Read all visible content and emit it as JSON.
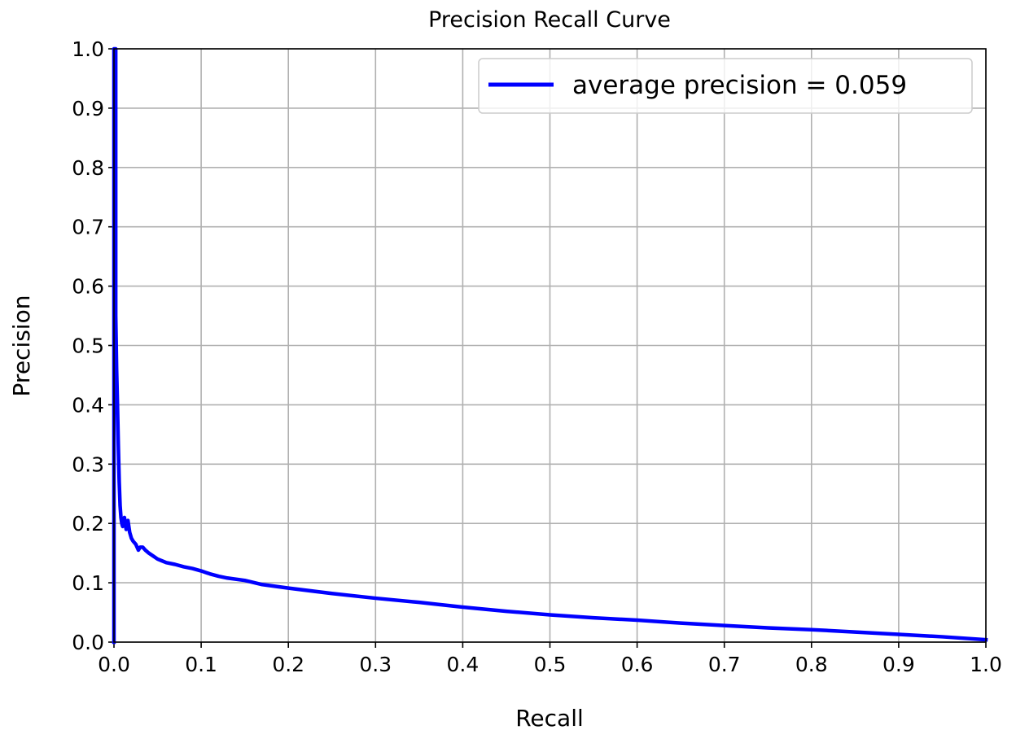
{
  "chart_data": {
    "type": "line",
    "title": "Precision Recall Curve",
    "xlabel": "Recall",
    "ylabel": "Precision",
    "xlim": [
      0.0,
      1.0
    ],
    "ylim": [
      0.0,
      1.0
    ],
    "xticks": [
      "0.0",
      "0.1",
      "0.2",
      "0.3",
      "0.4",
      "0.5",
      "0.6",
      "0.7",
      "0.8",
      "0.9",
      "1.0"
    ],
    "yticks": [
      "0.0",
      "0.1",
      "0.2",
      "0.3",
      "0.4",
      "0.5",
      "0.6",
      "0.7",
      "0.8",
      "0.9",
      "1.0"
    ],
    "grid": true,
    "legend_position": "top-right",
    "series": [
      {
        "name": "average precision = 0.059",
        "color": "#0000ff",
        "points": [
          [
            0.0,
            0.0
          ],
          [
            0.0,
            1.0
          ],
          [
            0.002,
            1.0
          ],
          [
            0.002,
            0.55
          ],
          [
            0.003,
            0.46
          ],
          [
            0.004,
            0.4
          ],
          [
            0.005,
            0.33
          ],
          [
            0.006,
            0.27
          ],
          [
            0.007,
            0.23
          ],
          [
            0.008,
            0.21
          ],
          [
            0.009,
            0.2
          ],
          [
            0.01,
            0.195
          ],
          [
            0.012,
            0.21
          ],
          [
            0.014,
            0.19
          ],
          [
            0.016,
            0.205
          ],
          [
            0.018,
            0.185
          ],
          [
            0.02,
            0.175
          ],
          [
            0.022,
            0.17
          ],
          [
            0.025,
            0.165
          ],
          [
            0.028,
            0.155
          ],
          [
            0.03,
            0.16
          ],
          [
            0.033,
            0.16
          ],
          [
            0.036,
            0.155
          ],
          [
            0.04,
            0.15
          ],
          [
            0.045,
            0.145
          ],
          [
            0.05,
            0.14
          ],
          [
            0.055,
            0.137
          ],
          [
            0.06,
            0.134
          ],
          [
            0.07,
            0.131
          ],
          [
            0.08,
            0.127
          ],
          [
            0.09,
            0.124
          ],
          [
            0.1,
            0.12
          ],
          [
            0.11,
            0.115
          ],
          [
            0.12,
            0.111
          ],
          [
            0.13,
            0.108
          ],
          [
            0.15,
            0.104
          ],
          [
            0.17,
            0.097
          ],
          [
            0.2,
            0.091
          ],
          [
            0.25,
            0.082
          ],
          [
            0.3,
            0.074
          ],
          [
            0.35,
            0.067
          ],
          [
            0.4,
            0.059
          ],
          [
            0.45,
            0.052
          ],
          [
            0.5,
            0.046
          ],
          [
            0.55,
            0.041
          ],
          [
            0.6,
            0.037
          ],
          [
            0.65,
            0.032
          ],
          [
            0.7,
            0.028
          ],
          [
            0.75,
            0.024
          ],
          [
            0.8,
            0.021
          ],
          [
            0.85,
            0.017
          ],
          [
            0.9,
            0.013
          ],
          [
            0.95,
            0.009
          ],
          [
            1.0,
            0.004
          ]
        ]
      }
    ]
  },
  "colors": {
    "line": "#0000ff",
    "grid": "#b0b0b0",
    "axis": "#000000",
    "legend_border": "#cccccc"
  }
}
